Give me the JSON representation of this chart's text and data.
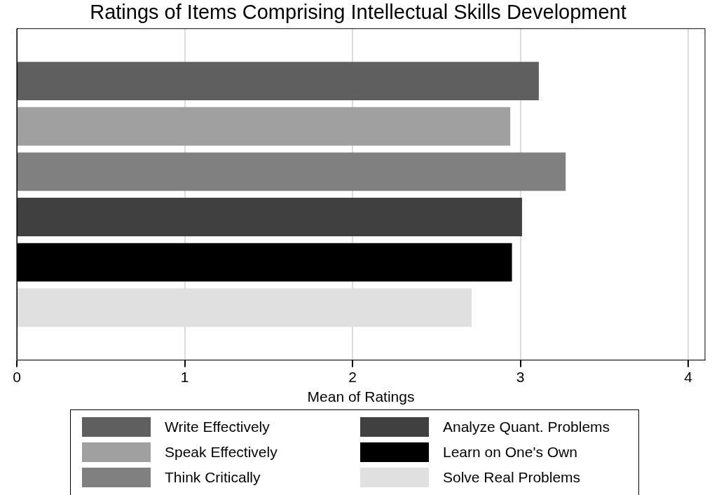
{
  "chart_data": {
    "type": "bar",
    "orientation": "horizontal",
    "title": "Ratings of Items Comprising Intellectual Skills Development",
    "xlabel": "Mean of Ratings",
    "categories": [
      null
    ],
    "series": [
      {
        "name": "Write Effectively",
        "color": "#5f5f5f",
        "values": [
          3.11
        ]
      },
      {
        "name": "Speak Effectively",
        "color": "#a0a0a0",
        "values": [
          2.94
        ]
      },
      {
        "name": "Think Critically",
        "color": "#808080",
        "values": [
          3.27
        ]
      },
      {
        "name": "Analyze Quant. Problems",
        "color": "#404040",
        "values": [
          3.01
        ]
      },
      {
        "name": "Learn on One's Own",
        "color": "#000000",
        "values": [
          2.95
        ]
      },
      {
        "name": "Solve Real Problems",
        "color": "#e0e0e0",
        "values": [
          2.71
        ]
      }
    ],
    "xlim": [
      0,
      4.1
    ],
    "xticks": [
      0,
      1,
      2,
      3,
      4
    ],
    "grid": "x",
    "legend": "bottom",
    "tick_labels": "x"
  }
}
